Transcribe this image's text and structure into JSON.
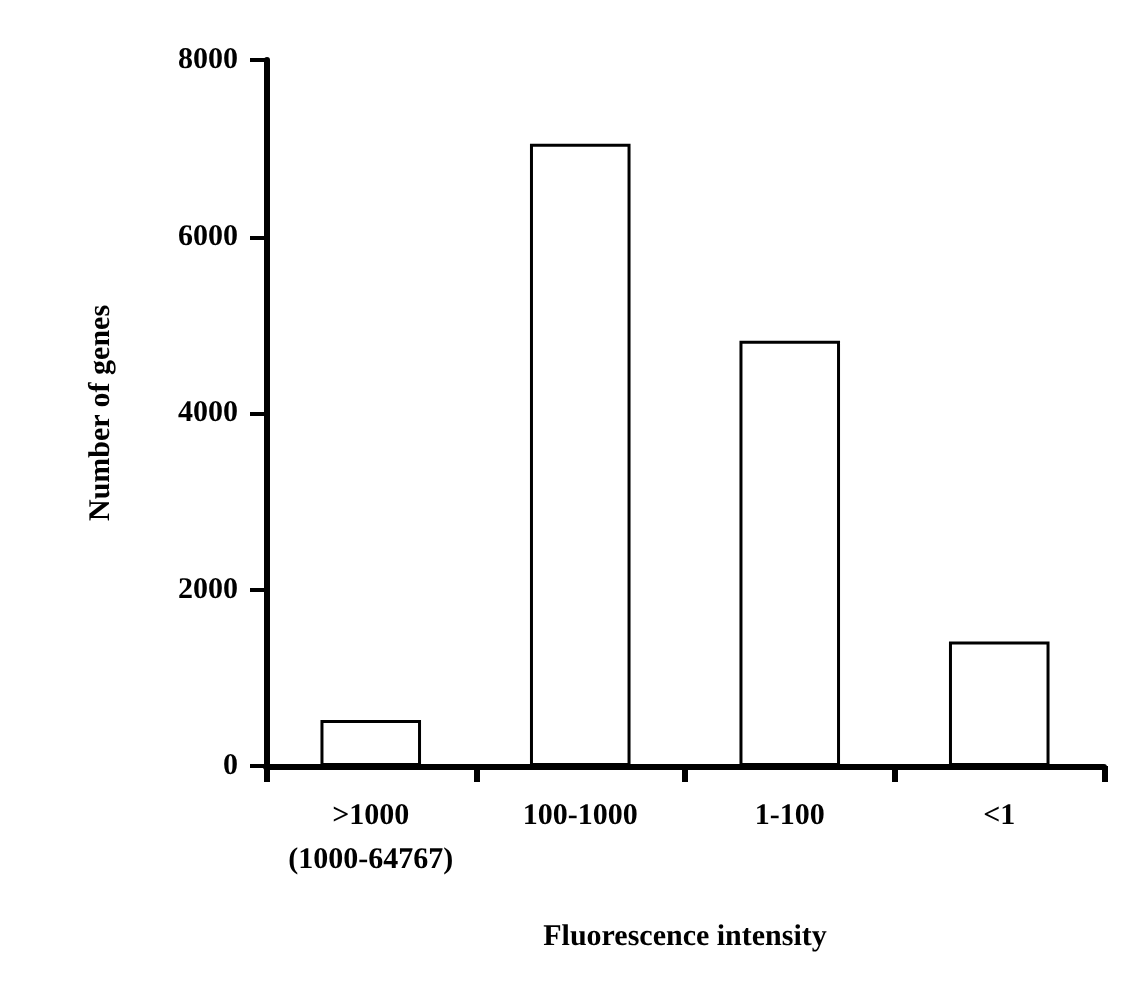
{
  "chart_data": {
    "type": "bar",
    "xlabel": "Fluorescence intensity",
    "ylabel": "Number of genes",
    "categories": [
      ">1000\n(1000-64767)",
      "100-1000",
      "1-100",
      "<1"
    ],
    "values": [
      520,
      7050,
      4820,
      1410
    ],
    "color": "#ffffff",
    "ylim": [
      0,
      8000
    ],
    "yticks": [
      0,
      2000,
      4000,
      6000,
      8000
    ],
    "grid": false
  }
}
